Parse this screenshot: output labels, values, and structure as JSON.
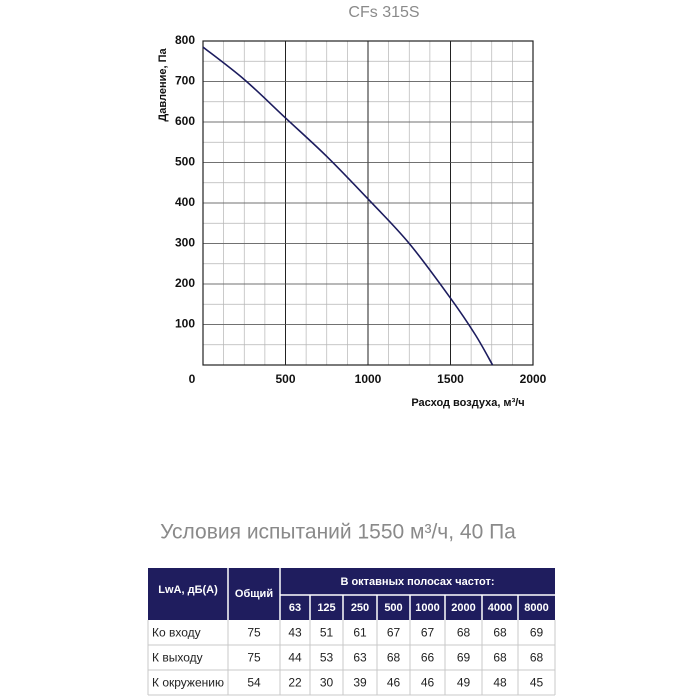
{
  "chart_data": {
    "type": "line",
    "title": "CFs 315S",
    "x_label": "Расход воздуха, м³/ч",
    "y_label": "Давление, Па",
    "x": [
      0,
      250,
      500,
      750,
      1000,
      1250,
      1500,
      1650,
      1755
    ],
    "values": [
      785,
      705,
      610,
      515,
      410,
      300,
      165,
      75,
      0
    ],
    "color": "#1c1c5e",
    "xlim": [
      0,
      2000
    ],
    "xticks": [
      0,
      500,
      1000,
      1500,
      2000
    ],
    "ylim": [
      0,
      800
    ],
    "yticks": [
      100,
      200,
      300,
      400,
      500,
      600,
      700,
      800
    ],
    "grid": true
  },
  "table": {
    "title": "Условия испытаний 1550 м³/ч, 40 Па",
    "header": {
      "name": "LwA, дБ(А)",
      "total": "Общий",
      "bands": "В октавных полосах частот:",
      "freqs": [
        "63",
        "125",
        "250",
        "500",
        "1000",
        "2000",
        "4000",
        "8000"
      ]
    },
    "rows": [
      {
        "name": "Ко входу",
        "total": 75,
        "values": [
          43,
          51,
          61,
          67,
          67,
          68,
          68,
          69
        ]
      },
      {
        "name": "К выходу",
        "total": 75,
        "values": [
          44,
          53,
          63,
          68,
          66,
          69,
          68,
          68
        ]
      },
      {
        "name": "К окружению",
        "total": 54,
        "values": [
          22,
          30,
          39,
          46,
          46,
          49,
          48,
          45
        ]
      }
    ]
  }
}
